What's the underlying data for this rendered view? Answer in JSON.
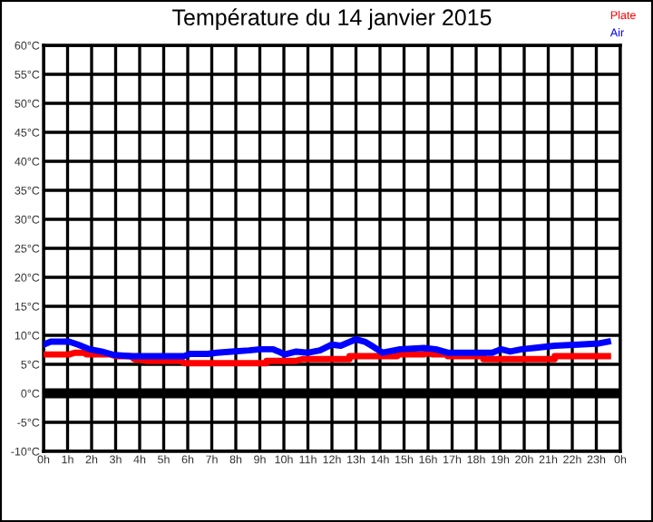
{
  "chart_data": {
    "type": "line",
    "title": "Température du 14 janvier 2015",
    "xlim": [
      "2015-01-14T00:00",
      "2015-01-15T00:00"
    ],
    "xticks": [
      {
        "value": "2015-01-14T00:00",
        "label": "0h"
      },
      {
        "value": "2015-01-14T01:00",
        "label": "1h"
      },
      {
        "value": "2015-01-14T02:00",
        "label": "2h"
      },
      {
        "value": "2015-01-14T03:00",
        "label": "3h"
      },
      {
        "value": "2015-01-14T04:00",
        "label": "4h"
      },
      {
        "value": "2015-01-14T05:00",
        "label": "5h"
      },
      {
        "value": "2015-01-14T06:00",
        "label": "6h"
      },
      {
        "value": "2015-01-14T07:00",
        "label": "7h"
      },
      {
        "value": "2015-01-14T08:00",
        "label": "8h"
      },
      {
        "value": "2015-01-14T09:00",
        "label": "9h"
      },
      {
        "value": "2015-01-14T10:00",
        "label": "10h"
      },
      {
        "value": "2015-01-14T11:00",
        "label": "11h"
      },
      {
        "value": "2015-01-14T12:00",
        "label": "12h"
      },
      {
        "value": "2015-01-14T13:00",
        "label": "13h"
      },
      {
        "value": "2015-01-14T14:00",
        "label": "14h"
      },
      {
        "value": "2015-01-14T15:00",
        "label": "15h"
      },
      {
        "value": "2015-01-14T16:00",
        "label": "16h"
      },
      {
        "value": "2015-01-14T17:00",
        "label": "17h"
      },
      {
        "value": "2015-01-14T18:00",
        "label": "18h"
      },
      {
        "value": "2015-01-14T19:00",
        "label": "19h"
      },
      {
        "value": "2015-01-14T20:00",
        "label": "20h"
      },
      {
        "value": "2015-01-14T21:00",
        "label": "21h"
      },
      {
        "value": "2015-01-14T22:00",
        "label": "22h"
      },
      {
        "value": "2015-01-14T23:00",
        "label": "23h"
      },
      {
        "value": "2015-01-15T00:00",
        "label": "0h"
      }
    ],
    "ylim": [
      -10,
      60
    ],
    "yticks": [
      {
        "value": -10,
        "label": "-10°C"
      },
      {
        "value": -5,
        "label": "-5°C"
      },
      {
        "value": 0,
        "label": "0°C"
      },
      {
        "value": 5,
        "label": "5°C"
      },
      {
        "value": 10,
        "label": "10°C"
      },
      {
        "value": 15,
        "label": "15°C"
      },
      {
        "value": 20,
        "label": "20°C"
      },
      {
        "value": 25,
        "label": "25°C"
      },
      {
        "value": 30,
        "label": "30°C"
      },
      {
        "value": 35,
        "label": "35°C"
      },
      {
        "value": 40,
        "label": "40°C"
      },
      {
        "value": 45,
        "label": "45°C"
      },
      {
        "value": 50,
        "label": "50°C"
      },
      {
        "value": 55,
        "label": "55°C"
      },
      {
        "value": 60,
        "label": "60°C"
      }
    ],
    "grid": true,
    "legend": "top right",
    "marker": "none",
    "line_style": "solid",
    "ref_lines": [
      {
        "axis": "y",
        "value": 0,
        "color": "#000000"
      }
    ],
    "series": [
      {
        "name": "Plate",
        "color": "#ff0000",
        "x": [
          "2015-01-14T00:00",
          "2015-01-14T01:04",
          "2015-01-14T01:18",
          "2015-01-14T01:40",
          "2015-01-14T01:48",
          "2015-01-14T02:47",
          "2015-01-14T03:01",
          "2015-01-14T03:38",
          "2015-01-14T03:46",
          "2015-01-14T04:15",
          "2015-01-14T05:43",
          "2015-01-14T05:51",
          "2015-01-14T09:17",
          "2015-01-14T09:17",
          "2015-01-14T10:31",
          "2015-01-14T10:46",
          "2015-01-14T12:44",
          "2015-01-14T12:44",
          "2015-01-14T14:43",
          "2015-01-14T14:43",
          "2015-01-14T15:50",
          "2015-01-14T15:57",
          "2015-01-14T16:12",
          "2015-01-14T16:49",
          "2015-01-14T16:49",
          "2015-01-14T18:18",
          "2015-01-14T18:18",
          "2015-01-14T21:16",
          "2015-01-14T21:16",
          "2015-01-14T23:29"
        ],
        "values": [
          6.7,
          6.7,
          7.0,
          7.0,
          6.7,
          6.7,
          6.4,
          6.4,
          5.9,
          5.6,
          5.6,
          5.2,
          5.2,
          5.6,
          5.6,
          5.9,
          5.9,
          6.4,
          6.4,
          6.7,
          6.7,
          7.0,
          6.7,
          6.7,
          6.4,
          6.4,
          5.9,
          5.9,
          6.4,
          6.4
        ]
      },
      {
        "name": "Air",
        "color": "#0000ff",
        "x": [
          "2015-01-14T00:00",
          "2015-01-14T00:18",
          "2015-01-14T01:04",
          "2015-01-14T01:26",
          "2015-01-14T01:55",
          "2015-01-14T02:25",
          "2015-01-14T02:57",
          "2015-01-14T03:38",
          "2015-01-14T05:51",
          "2015-01-14T06:06",
          "2015-01-14T06:50",
          "2015-01-14T07:12",
          "2015-01-14T07:49",
          "2015-01-14T08:33",
          "2015-01-14T09:02",
          "2015-01-14T09:32",
          "2015-01-14T09:47",
          "2015-01-14T10:02",
          "2015-01-14T10:31",
          "2015-01-14T11:01",
          "2015-01-14T11:30",
          "2015-01-14T12:00",
          "2015-01-14T12:22",
          "2015-01-14T12:59",
          "2015-01-14T13:22",
          "2015-01-14T13:44",
          "2015-01-14T14:06",
          "2015-01-14T14:21",
          "2015-01-14T14:50",
          "2015-01-14T15:50",
          "2015-01-14T16:19",
          "2015-01-14T16:49",
          "2015-01-14T18:40",
          "2015-01-14T19:02",
          "2015-01-14T19:25",
          "2015-01-14T19:54",
          "2015-01-14T20:24",
          "2015-01-14T21:16",
          "2015-01-14T22:15",
          "2015-01-14T23:07",
          "2015-01-14T23:29"
        ],
        "values": [
          8.4,
          8.9,
          8.9,
          8.4,
          7.6,
          7.2,
          6.6,
          6.4,
          6.4,
          6.8,
          6.8,
          7.0,
          7.2,
          7.4,
          7.6,
          7.6,
          7.2,
          6.7,
          7.2,
          7.0,
          7.4,
          8.4,
          8.2,
          9.3,
          8.9,
          8.0,
          7.0,
          7.2,
          7.6,
          7.8,
          7.6,
          7.0,
          7.0,
          7.6,
          7.2,
          7.6,
          7.8,
          8.2,
          8.4,
          8.6,
          8.9
        ]
      }
    ]
  }
}
